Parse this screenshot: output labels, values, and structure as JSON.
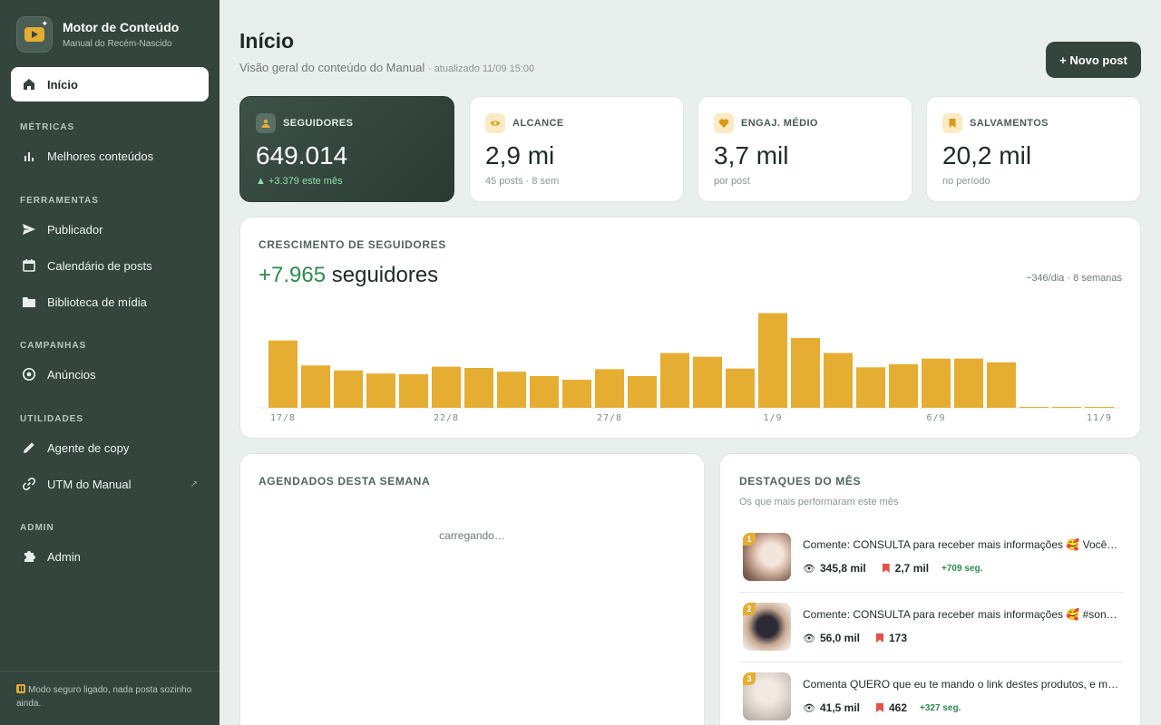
{
  "brand": {
    "title": "Motor de Conteúdo",
    "subtitle": "Manual do Recém-Nascido"
  },
  "nav": {
    "home": "Início",
    "sections": [
      {
        "label": "MÉTRICAS",
        "items": [
          "Melhores conteúdos"
        ]
      },
      {
        "label": "FERRAMENTAS",
        "items": [
          "Publicador",
          "Calendário de posts",
          "Biblioteca de mídia"
        ]
      },
      {
        "label": "CAMPANHAS",
        "items": [
          "Anúncios"
        ]
      },
      {
        "label": "UTILIDADES",
        "items": [
          "Agente de copy",
          "UTM do Manual"
        ]
      },
      {
        "label": "ADMIN",
        "items": [
          "Admin"
        ]
      }
    ],
    "external_mark": "↗"
  },
  "footer_note": "Modo seguro ligado, nada posta sozinho ainda.",
  "header": {
    "title": "Início",
    "subtitle": "Visão geral do conteúdo do Manual",
    "updated": "· atualizado 11/09 15:00",
    "new_post_label": "+ Novo post"
  },
  "stats": [
    {
      "label": "SEGUIDORES",
      "value": "649.014",
      "foot": "▲ +3.379 este mês",
      "icon": "users-icon"
    },
    {
      "label": "ALCANCE",
      "value": "2,9 mi",
      "foot": "45 posts · 8 sem",
      "icon": "eye-icon"
    },
    {
      "label": "ENGAJ. MÉDIO",
      "value": "3,7 mil",
      "foot": "por post",
      "icon": "heart-icon"
    },
    {
      "label": "SALVAMENTOS",
      "value": "20,2 mil",
      "foot": "no período",
      "icon": "bookmark-icon"
    }
  ],
  "growth": {
    "label": "CRESCIMENTO DE SEGUIDORES",
    "total": "+7.965",
    "total_suffix": "seguidores",
    "rate": "~346/dia · 8 semanas"
  },
  "chart_data": {
    "type": "bar",
    "categories": [
      "17/8",
      "18/8",
      "19/8",
      "20/8",
      "21/8",
      "22/8",
      "23/8",
      "24/8",
      "25/8",
      "26/8",
      "27/8",
      "28/8",
      "29/8",
      "30/8",
      "31/8",
      "1/9",
      "2/9",
      "3/9",
      "4/9",
      "5/9",
      "6/9",
      "7/9",
      "8/9",
      "9/9",
      "10/9",
      "11/9"
    ],
    "values": [
      540,
      340,
      300,
      275,
      270,
      330,
      320,
      290,
      255,
      225,
      310,
      255,
      440,
      410,
      315,
      760,
      560,
      440,
      325,
      350,
      395,
      395,
      365,
      6,
      6,
      6
    ],
    "tick_labels": [
      "17/8",
      "22/8",
      "27/8",
      "1/9",
      "6/9",
      "11/9"
    ],
    "color": "#e6ad33",
    "ylim": [
      0,
      800
    ]
  },
  "scheduled": {
    "label": "AGENDADOS DESTA SEMANA",
    "loading": "carregando…"
  },
  "highlights": {
    "label": "DESTAQUES DO MÊS",
    "subtitle": "Os que mais performaram este mês",
    "posts": [
      {
        "rank": "1",
        "title": "Comente: CONSULTA para receber mais informações 🥰 Você sabia",
        "views": "345,8 mil",
        "saves": "2,7 mil",
        "gain": "+709 seg."
      },
      {
        "rank": "2",
        "title": "Comente: CONSULTA para receber mais informações 🥰 #sono #bebê",
        "views": "56,0 mil",
        "saves": "173",
        "gain": ""
      },
      {
        "rank": "3",
        "title": "Comenta QUERO que eu te mando o link destes produtos, e muito mais",
        "views": "41,5 mil",
        "saves": "462",
        "gain": "+327 seg."
      }
    ]
  }
}
